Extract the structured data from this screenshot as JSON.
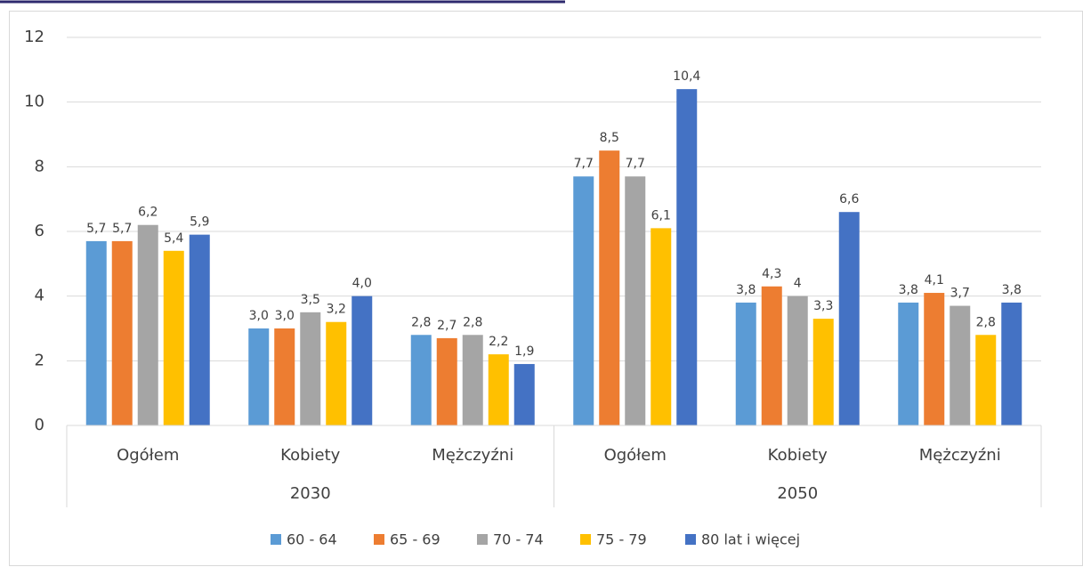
{
  "chart_data": {
    "type": "bar",
    "categories": [
      "Ogółem",
      "Kobiety",
      "Mężczyźni",
      "Ogółem",
      "Kobiety",
      "Mężczyźni"
    ],
    "groups": [
      "2030",
      "2050"
    ],
    "ylim": [
      0,
      12
    ],
    "yticks": [
      0,
      2,
      4,
      6,
      8,
      10,
      12
    ],
    "grid": true,
    "legend": "bottom",
    "series": [
      {
        "name": "60 - 64",
        "color": "#5b9bd5",
        "values": [
          5.7,
          3.0,
          2.8,
          7.7,
          3.8,
          3.8
        ],
        "value_labels": [
          "5,7",
          "3,0",
          "2,8",
          "7,7",
          "3,8",
          "3,8"
        ]
      },
      {
        "name": "65 - 69",
        "color": "#ed7d31",
        "values": [
          5.7,
          3.0,
          2.7,
          8.5,
          4.3,
          4.1
        ],
        "value_labels": [
          "5,7",
          "3,0",
          "2,7",
          "8,5",
          "4,3",
          "4,1"
        ]
      },
      {
        "name": "70 - 74",
        "color": "#a5a5a5",
        "values": [
          6.2,
          3.5,
          2.8,
          7.7,
          4,
          3.7
        ],
        "value_labels": [
          "6,2",
          "3,5",
          "2,8",
          "7,7",
          "4",
          "3,7"
        ]
      },
      {
        "name": "75 - 79",
        "color": "#ffc000",
        "values": [
          5.4,
          3.2,
          2.2,
          6.1,
          3.3,
          2.8
        ],
        "value_labels": [
          "5,4",
          "3,2",
          "2,2",
          "6,1",
          "3,3",
          "2,8"
        ]
      },
      {
        "name": "80 lat i więcej",
        "color": "#4472c4",
        "values": [
          5.9,
          4.0,
          1.9,
          10.4,
          6.6,
          3.8
        ],
        "value_labels": [
          "5,9",
          "4,0",
          "1,9",
          "10,4",
          "6,6",
          "3,8"
        ]
      }
    ]
  }
}
